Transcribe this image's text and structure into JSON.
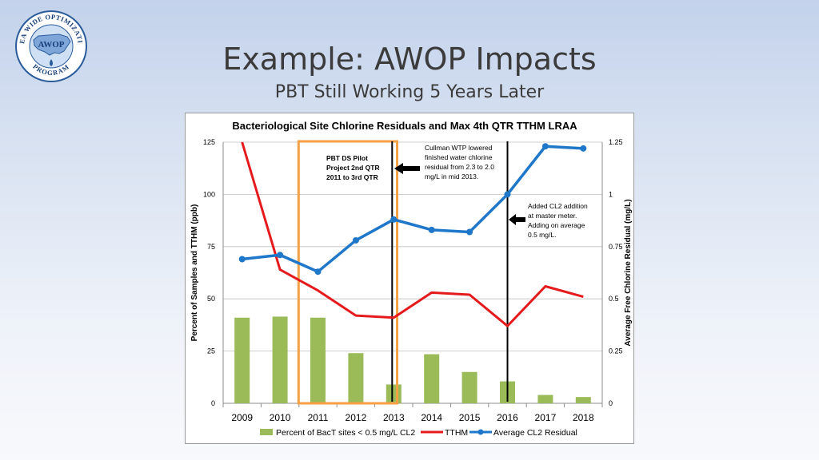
{
  "slide": {
    "title": "Example: AWOP Impacts",
    "subtitle": "PBT Still Working 5 Years Later"
  },
  "logo": {
    "center_text": "AWOP",
    "ring_text_top": "AREA WIDE OPTIMIZATION",
    "ring_text_bottom": "PROGRAM",
    "icon": "usa-map-water-drop-icon"
  },
  "chart_data": {
    "type": "bar",
    "title": "Bacteriological Site Chlorine Residuals and Max 4th QTR TTHM LRAA",
    "categories": [
      "2009",
      "2010",
      "2011",
      "2012",
      "2013",
      "2014",
      "2015",
      "2016",
      "2017",
      "2018"
    ],
    "ylabel": "Percent of Samples and TTHM (ppb)",
    "y2label": "Average Free Chlorine Residual (mg/L)",
    "ylim": [
      0,
      125
    ],
    "y2lim": [
      0,
      1.25
    ],
    "yticks": [
      "0",
      "25",
      "50",
      "75",
      "100",
      "125"
    ],
    "y2ticks": [
      "0",
      "0.25",
      "0.5",
      "0.75",
      "1",
      "1.25"
    ],
    "series": [
      {
        "name": "Percent of BacT sites < 0.5 mg/L CL2",
        "type": "bar",
        "axis": "left",
        "color": "#9bbb59",
        "values": [
          41,
          41.5,
          41,
          24,
          9,
          23.5,
          15,
          10.5,
          4,
          3
        ]
      },
      {
        "name": "TTHM",
        "type": "line",
        "axis": "left",
        "color": "#e41a1c",
        "values": [
          125,
          64,
          54,
          42,
          41,
          53,
          52,
          37,
          56,
          51
        ]
      },
      {
        "name": "Average CL2 Residual",
        "type": "line",
        "axis": "right",
        "color": "#1f77c9",
        "values": [
          0.69,
          0.71,
          0.63,
          0.78,
          0.88,
          0.83,
          0.82,
          1.0,
          1.23,
          1.22
        ]
      }
    ],
    "annotations": {
      "pilot_box": {
        "lines": [
          "PBT DS Pilot",
          "Project 2nd QTR",
          "2011 to 3rd QTR"
        ],
        "color": "#f4a044"
      },
      "note_2013": [
        "Cullman WTP lowered",
        "finished water chlorine",
        "residual from 2.3 to 2.0",
        "mg/L in mid 2013."
      ],
      "note_2016": [
        "Added CL2 addition",
        "at master meter.",
        "Adding on average",
        "0.5 mg/L."
      ]
    },
    "grid": true,
    "legend_position": "bottom"
  }
}
